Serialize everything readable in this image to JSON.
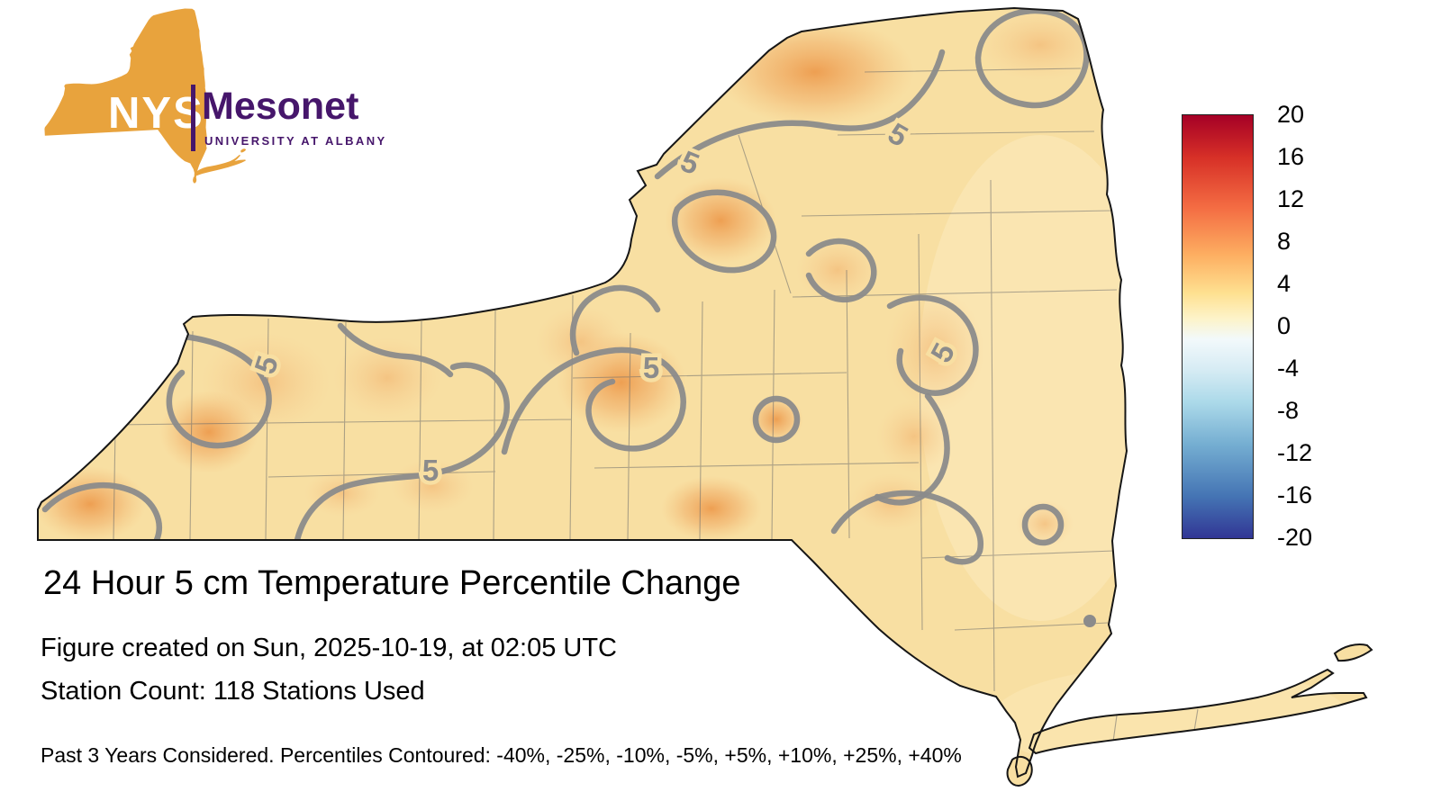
{
  "logo": {
    "nys": "NYS",
    "mesonet": "Mesonet",
    "university": "UNIVERSITY AT ALBANY"
  },
  "title": "24 Hour 5 cm Temperature Percentile Change",
  "meta": {
    "created": "Figure created on Sun, 2025-10-19, at 02:05 UTC",
    "stations": "Station Count: 118 Stations Used"
  },
  "footnote": "Past 3 Years Considered. Percentiles Contoured: -40%, -25%, -10%, -5%, +5%, +10%, +25%, +40%",
  "map": {
    "region": "New York State",
    "contour_label": "5",
    "contour_levels": [
      "-40%",
      "-25%",
      "-10%",
      "-5%",
      "+5%",
      "+10%",
      "+25%",
      "+40%"
    ]
  },
  "colorbar": {
    "max": 20,
    "min": -20,
    "ticks": [
      "20",
      "16",
      "12",
      "8",
      "4",
      "0",
      "-4",
      "-8",
      "-12",
      "-16",
      "-20"
    ],
    "stops": [
      "#a50026 0%",
      "#d73027 10%",
      "#f46d43 22%",
      "#fdae61 33%",
      "#fee090 42%",
      "#fdf3c8 48%",
      "#f2f9fb 53%",
      "#d7ecf4 60%",
      "#abd9e9 68%",
      "#74add1 78%",
      "#4575b4 90%",
      "#313695 100%"
    ]
  },
  "colors": {
    "logo-gold": "#E8A33D",
    "logo-purple": "#46166B",
    "map-base": "#f8dfa2",
    "map-warm": "#ec9444",
    "contour-gray": "#8b8b8b",
    "background": "#ffffff"
  },
  "chart_data": {
    "type": "heatmap",
    "title": "24 Hour 5 cm Temperature Percentile Change",
    "region": "New York State with county boundaries",
    "colorbar_range": [
      -20,
      20
    ],
    "colorbar_ticks": [
      20,
      16,
      12,
      8,
      4,
      0,
      -4,
      -8,
      -12,
      -16,
      -20
    ],
    "contour_levels_percent": [
      -40,
      -25,
      -10,
      -5,
      5,
      10,
      25,
      40
    ],
    "visible_contour_value": 5,
    "dominant_value_range": [
      0,
      8
    ],
    "legend_position": "right"
  }
}
